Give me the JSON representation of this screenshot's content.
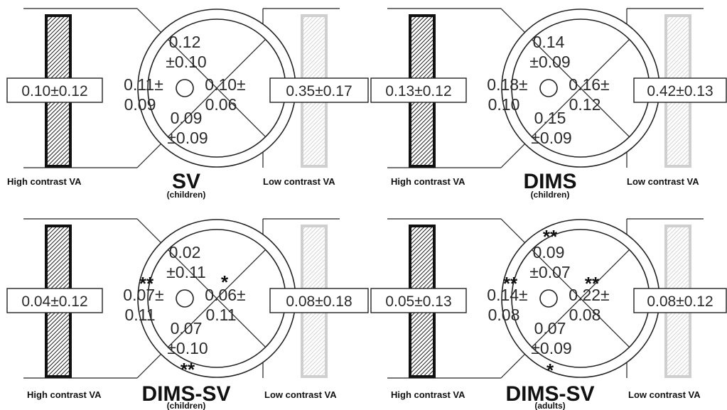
{
  "panels": [
    {
      "title": "SV",
      "subtitle": "(children)",
      "high_label": "High contrast VA",
      "low_label": "Low contrast VA",
      "high_value": "0.10±0.12",
      "low_value": "0.35±0.17",
      "top": [
        "0.12",
        "±0.10"
      ],
      "bottom": [
        "0.09",
        "±0.09"
      ],
      "left": [
        "0.11±",
        "0.09"
      ],
      "right": [
        "0.10±",
        "0.06"
      ],
      "stars": {
        "top": "",
        "bottom": "",
        "left": "",
        "right": ""
      }
    },
    {
      "title": "DIMS",
      "subtitle": "(children)",
      "high_label": "High contrast VA",
      "low_label": "Low contrast VA",
      "high_value": "0.13±0.12",
      "low_value": "0.42±0.13",
      "top": [
        "0.14",
        "±0.09"
      ],
      "bottom": [
        "0.15",
        "±0.09"
      ],
      "left": [
        "0.18±",
        "0.10"
      ],
      "right": [
        "0.16±",
        "0.12"
      ],
      "stars": {
        "top": "",
        "bottom": "",
        "left": "",
        "right": ""
      }
    },
    {
      "title": "DIMS-SV",
      "subtitle": "(children)",
      "high_label": "High contrast VA",
      "low_label": "Low contrast VA",
      "high_value": "0.04±0.12",
      "low_value": "0.08±0.18",
      "top": [
        "0.02",
        "±0.11"
      ],
      "bottom": [
        "0.07",
        "±0.10"
      ],
      "left": [
        "0.07±",
        "0.11"
      ],
      "right": [
        "0.06±",
        "0.11"
      ],
      "stars": {
        "top": "",
        "bottom": "**",
        "left": "**",
        "right": "*"
      }
    },
    {
      "title": "DIMS-SV",
      "subtitle": "(adults)",
      "high_label": "High contrast VA",
      "low_label": "Low contrast VA",
      "high_value": "0.05±0.13",
      "low_value": "0.08±0.12",
      "top": [
        "0.09",
        "±0.07"
      ],
      "bottom": [
        "0.07",
        "±0.09"
      ],
      "left": [
        "0.14±",
        "0.08"
      ],
      "right": [
        "0.22±",
        "0.08"
      ],
      "stars": {
        "top": "**",
        "bottom": "*",
        "left": "**",
        "right": "**"
      }
    }
  ]
}
